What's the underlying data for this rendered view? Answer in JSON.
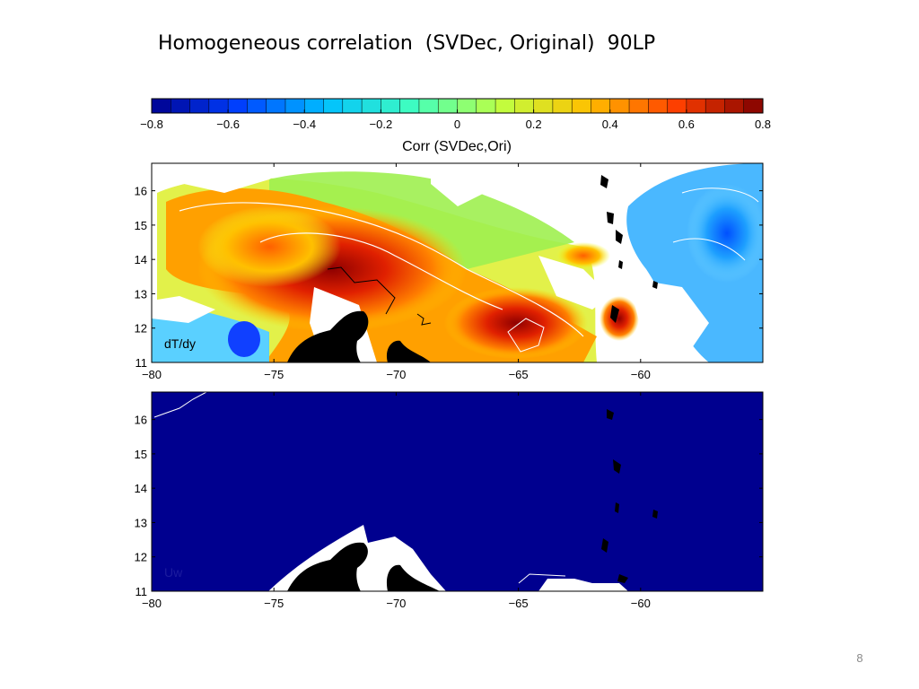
{
  "slide": {
    "title": "Homogeneous correlation  (SVDec, Original)  90LP",
    "page_number": "8"
  },
  "colors": {
    "scale": [
      "#00008f",
      "#0040ff",
      "#00c0ff",
      "#40ffbf",
      "#c0ff40",
      "#ffc000",
      "#ff4000",
      "#800000"
    ],
    "land": "#000000",
    "contour": "#ffffff",
    "background": "#ffffff"
  },
  "chart_data": [
    {
      "type": "colorbar",
      "label": "Corr (SVDec,Ori)",
      "range": [
        -0.8,
        0.8
      ],
      "n_levels": 32,
      "ticks": [
        -0.8,
        -0.6,
        -0.4,
        -0.2,
        0,
        0.2,
        0.4,
        0.6,
        0.8
      ],
      "tick_labels": [
        "−0.8",
        "−0.6",
        "−0.4",
        "−0.2",
        "0",
        "0.2",
        "0.4",
        "0.6",
        "0.8"
      ]
    },
    {
      "type": "heatmap",
      "panel_label": "dT/dy",
      "xlim": [
        -80,
        -55
      ],
      "ylim": [
        11,
        16.8
      ],
      "x_ticks": [
        -80,
        -75,
        -70,
        -65,
        -60
      ],
      "x_tick_labels": [
        "−80",
        "−75",
        "−70",
        "−65",
        "−60"
      ],
      "y_ticks": [
        11,
        12,
        13,
        14,
        15,
        16
      ],
      "y_tick_labels": [
        "11",
        "12",
        "13",
        "14",
        "15",
        "16"
      ],
      "value_range": [
        -0.8,
        0.8
      ],
      "features": [
        {
          "name": "positive correlation core",
          "lon": -72,
          "lat": 13.6,
          "corr": 0.75
        },
        {
          "name": "positive correlation band",
          "lon": -68,
          "lat": 13.2,
          "corr": 0.55
        },
        {
          "name": "positive correlation lobe",
          "lon": -64.5,
          "lat": 12.2,
          "corr": 0.65
        },
        {
          "name": "positive correlation patch",
          "lon": -61,
          "lat": 12.2,
          "corr": 0.6
        },
        {
          "name": "negative correlation region",
          "lon": -56.5,
          "lat": 14.8,
          "corr": -0.45
        },
        {
          "name": "negative correlation patch",
          "lon": -76.5,
          "lat": 11.8,
          "corr": -0.55
        }
      ]
    },
    {
      "type": "heatmap",
      "panel_label": "Uw",
      "xlim": [
        -80,
        -55
      ],
      "ylim": [
        11,
        16.8
      ],
      "x_ticks": [
        -80,
        -75,
        -70,
        -65,
        -60
      ],
      "x_tick_labels": [
        "−80",
        "−75",
        "−70",
        "−65",
        "−60"
      ],
      "y_ticks": [
        11,
        12,
        13,
        14,
        15,
        16
      ],
      "y_tick_labels": [
        "11",
        "12",
        "13",
        "14",
        "15",
        "16"
      ],
      "value_range": [
        -0.8,
        0.8
      ],
      "uniform_value": -0.8
    }
  ]
}
